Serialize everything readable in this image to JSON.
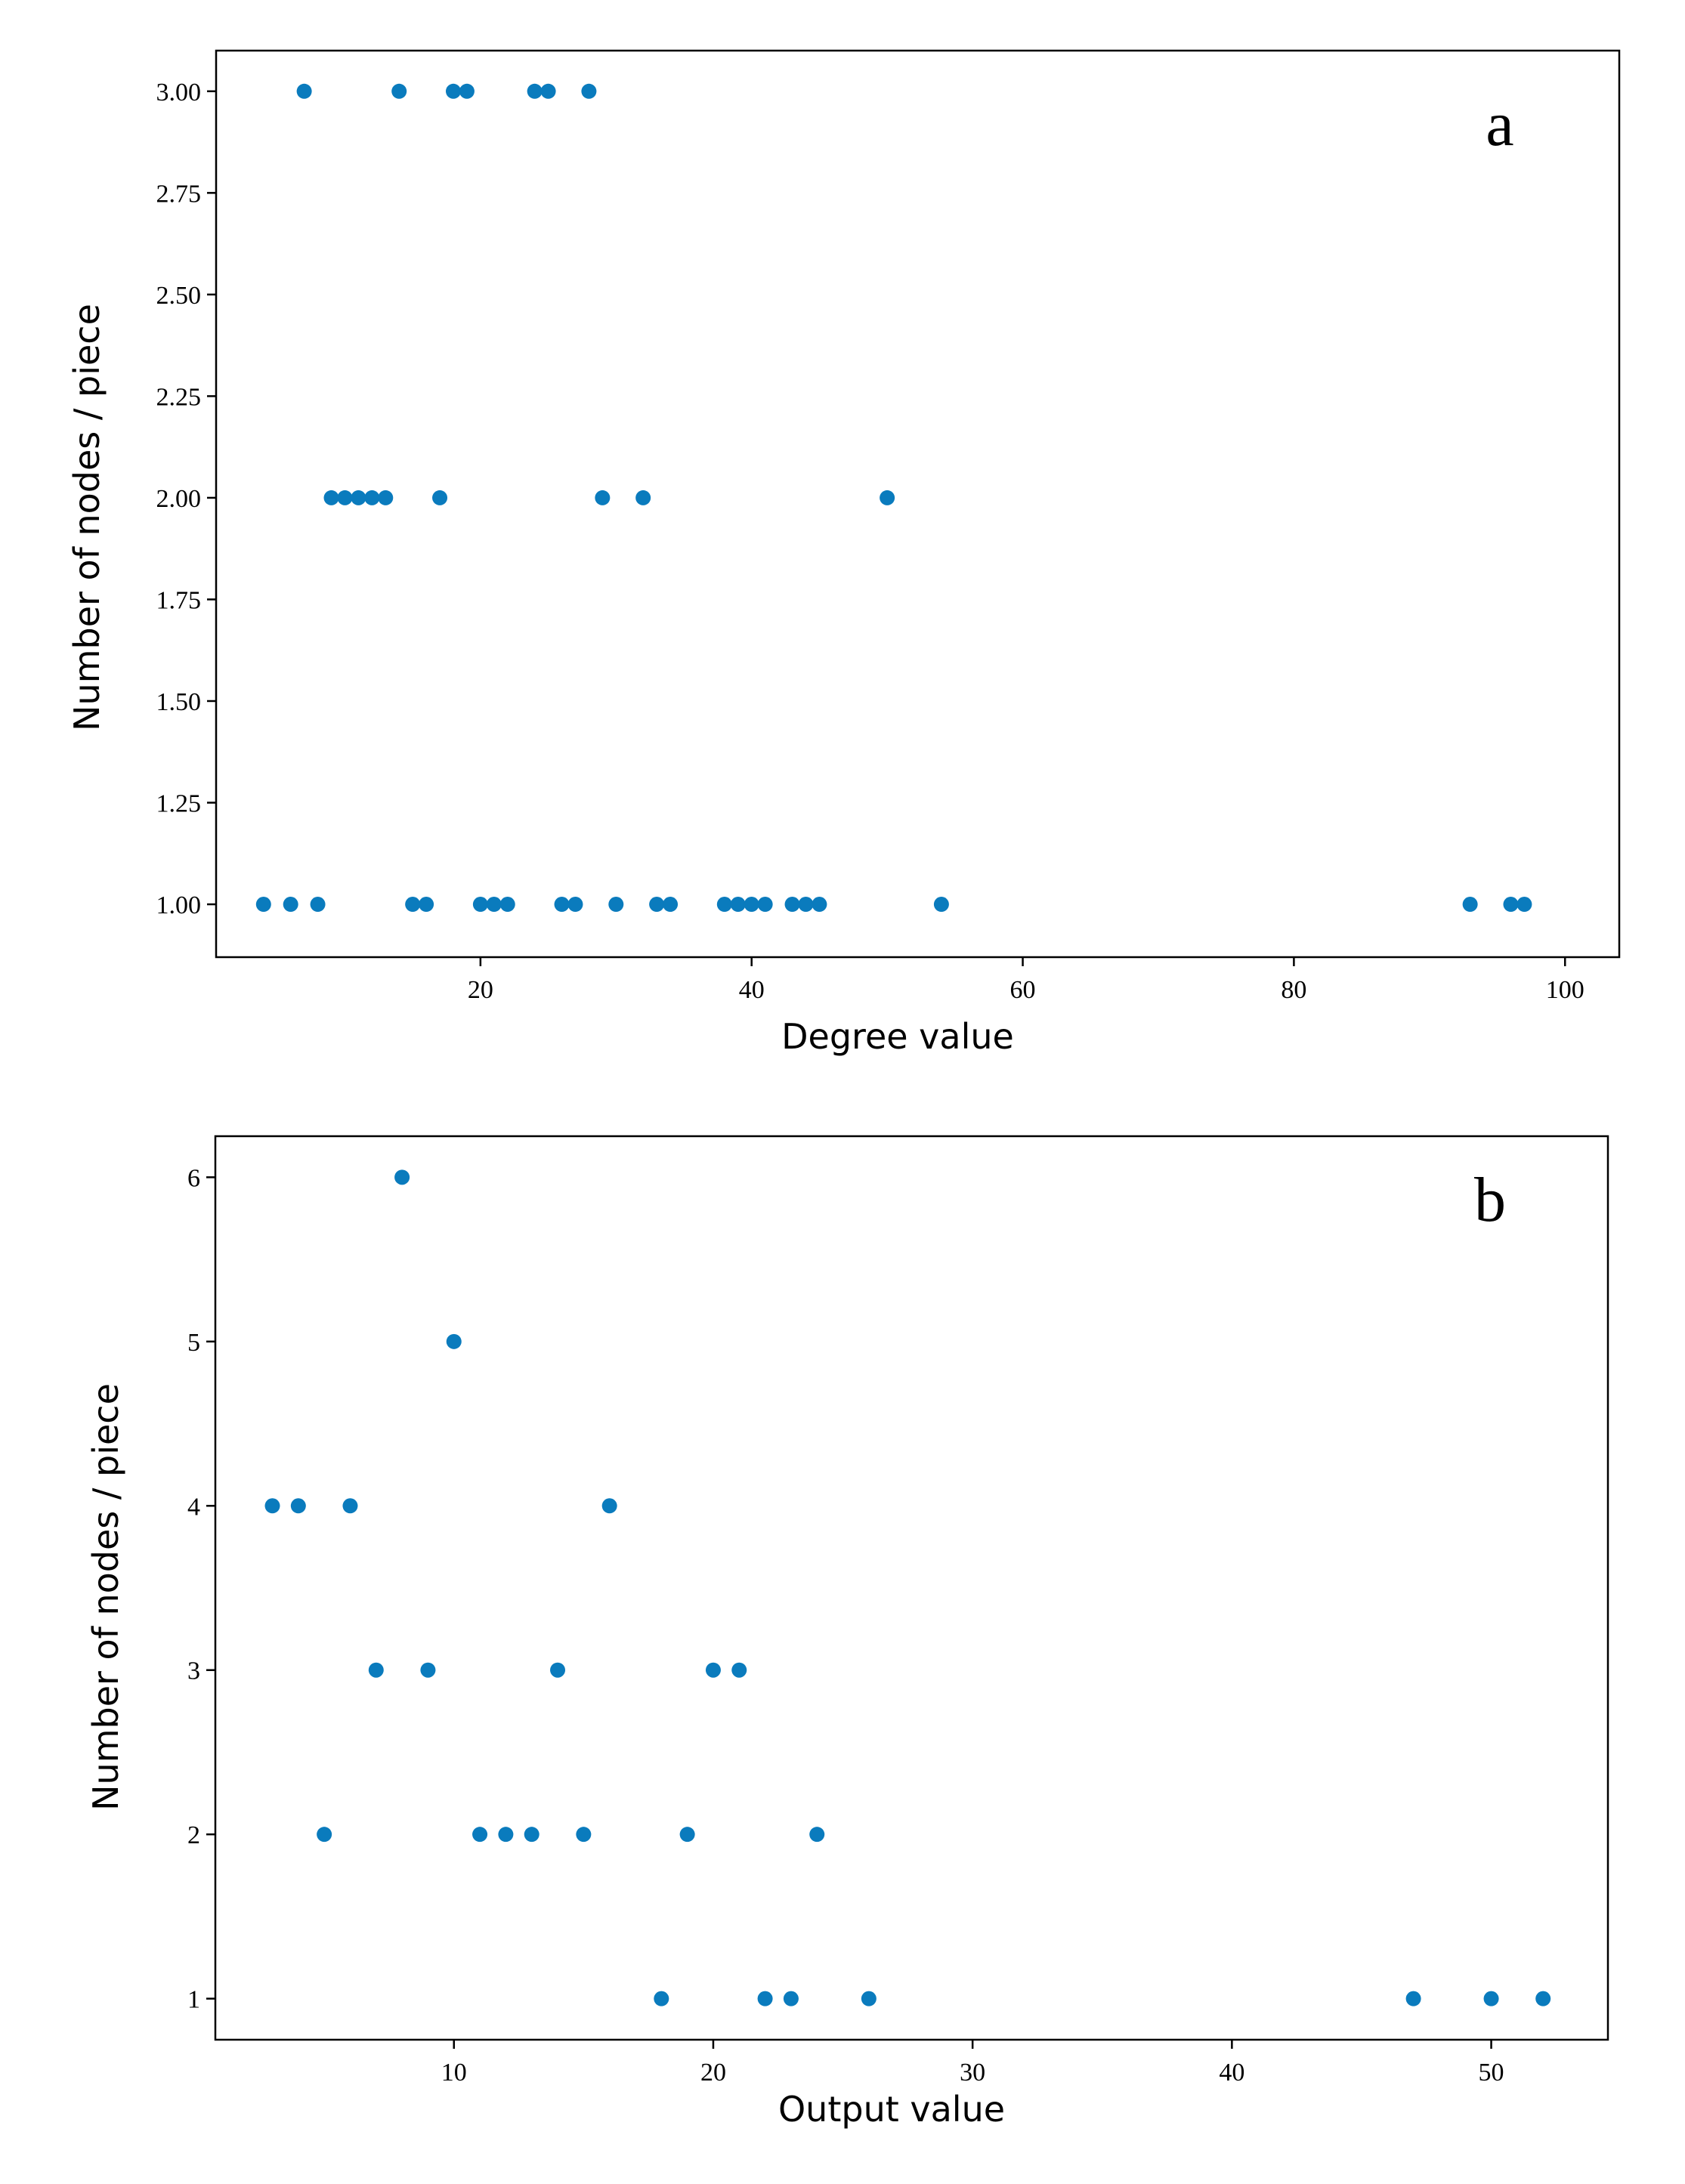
{
  "chart_data": [
    {
      "type": "scatter",
      "panel_label": "a",
      "xlabel": "Degree value",
      "ylabel": "Number of nodes / piece",
      "xlim": [
        0.5,
        104
      ],
      "ylim": [
        0.87,
        3.1
      ],
      "xticks": [
        20,
        40,
        60,
        80,
        100
      ],
      "xtick_labels": [
        "20",
        "40",
        "60",
        "80",
        "100"
      ],
      "yticks": [
        1.0,
        1.25,
        1.5,
        1.75,
        2.0,
        2.25,
        2.5,
        2.75,
        3.0
      ],
      "ytick_labels": [
        "1.00",
        "1.25",
        "1.50",
        "1.75",
        "2.00",
        "2.25",
        "2.50",
        "2.75",
        "3.00"
      ],
      "marker_color": "#0a7bbd",
      "series": [
        {
          "name": "points",
          "x": [
            7,
            14,
            18,
            19,
            24,
            25,
            28,
            9,
            10,
            11,
            12,
            13,
            17,
            29,
            32,
            50,
            4,
            6,
            8,
            15,
            16,
            20,
            21,
            22,
            26,
            27,
            30,
            33,
            34,
            38,
            39,
            40,
            41,
            43,
            44,
            45,
            54,
            93,
            96,
            97
          ],
          "y": [
            3,
            3,
            3,
            3,
            3,
            3,
            3,
            2,
            2,
            2,
            2,
            2,
            2,
            2,
            2,
            2,
            1,
            1,
            1,
            1,
            1,
            1,
            1,
            1,
            1,
            1,
            1,
            1,
            1,
            1,
            1,
            1,
            1,
            1,
            1,
            1,
            1,
            1,
            1,
            1
          ]
        }
      ]
    },
    {
      "type": "scatter",
      "panel_label": "b",
      "xlabel": "Output value",
      "ylabel": "Number of nodes / piece",
      "xlim": [
        0.8,
        54.5
      ],
      "ylim": [
        0.75,
        6.25
      ],
      "xticks": [
        10,
        20,
        30,
        40,
        50
      ],
      "xtick_labels": [
        "10",
        "20",
        "30",
        "40",
        "50"
      ],
      "yticks": [
        1,
        2,
        3,
        4,
        5,
        6
      ],
      "ytick_labels": [
        "1",
        "2",
        "3",
        "4",
        "5",
        "6"
      ],
      "marker_color": "#0a7bbd",
      "series": [
        {
          "name": "points",
          "x": [
            8,
            10,
            3,
            4,
            6,
            16,
            7,
            9,
            14,
            20,
            21,
            5,
            11,
            12,
            13,
            15,
            19,
            24,
            18,
            22,
            23,
            26,
            47,
            50,
            52
          ],
          "y": [
            6,
            5,
            4,
            4,
            4,
            4,
            3,
            3,
            3,
            3,
            3,
            2,
            2,
            2,
            2,
            2,
            2,
            2,
            1,
            1,
            1,
            1,
            1,
            1,
            1
          ]
        }
      ]
    }
  ]
}
